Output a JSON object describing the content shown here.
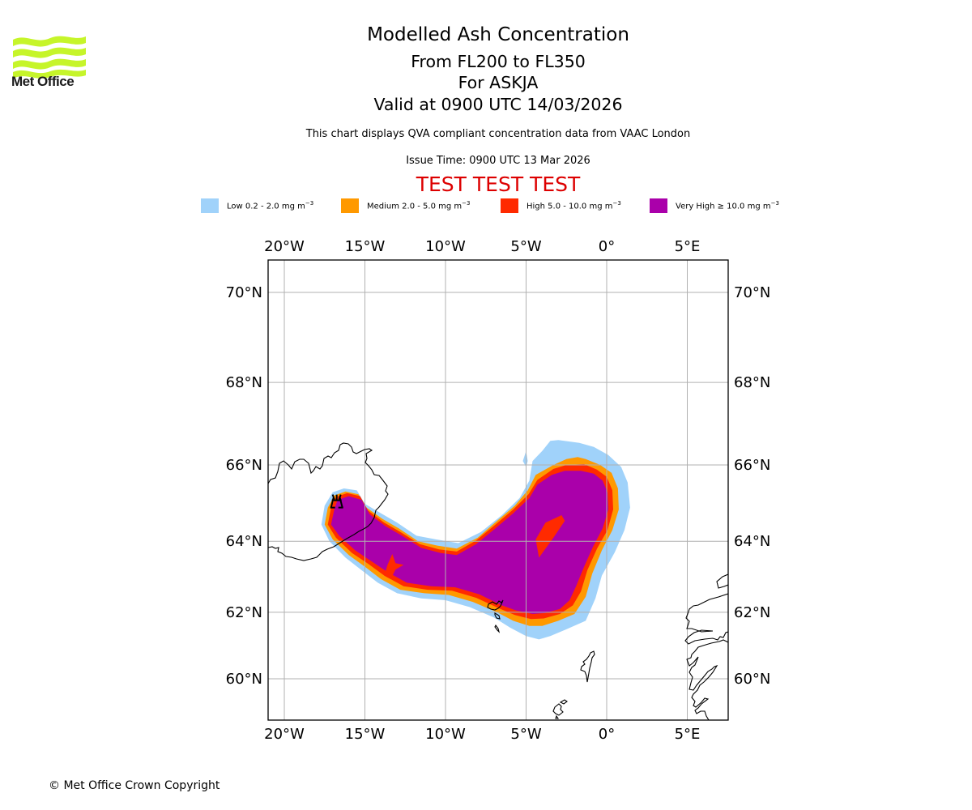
{
  "branding": {
    "logo_name": "Met Office",
    "logo_color": "#c6f52a"
  },
  "header": {
    "title": "Modelled Ash Concentration",
    "level_range": "From FL200 to FL350",
    "volcano": "For ASKJA",
    "valid_time": "Valid at 0900 UTC 14/03/2026",
    "compliance_note": "This chart displays QVA compliant concentration data from VAAC London",
    "issue_time": "Issue Time: 0900 UTC 13 Mar 2026",
    "test_banner": "TEST TEST TEST"
  },
  "legend": {
    "items": [
      {
        "label": "Low 0.2 - 2.0 mg m",
        "unit_exp": "−3",
        "color": "#a0d2fa"
      },
      {
        "label": "Medium 2.0 - 5.0 mg m",
        "unit_exp": "−3",
        "color": "#ff9900"
      },
      {
        "label": "High 5.0 - 10.0 mg m",
        "unit_exp": "−3",
        "color": "#ff2a00"
      },
      {
        "label": "Very High ≥ 10.0 mg m",
        "unit_exp": "−3",
        "color": "#aa00aa"
      }
    ]
  },
  "footer": {
    "copyright": "© Met Office Crown Copyright"
  },
  "chart_data": {
    "type": "map",
    "title": "Modelled Ash Concentration",
    "projection": "Mercator",
    "extent": {
      "lon": [
        -21,
        7.5
      ],
      "lat": [
        58.9,
        70.7
      ]
    },
    "grid": true,
    "lon_ticks": [
      {
        "value": -20,
        "label": "20°W"
      },
      {
        "value": -15,
        "label": "15°W"
      },
      {
        "value": -10,
        "label": "10°W"
      },
      {
        "value": -5,
        "label": "5°W"
      },
      {
        "value": 0,
        "label": "0°"
      },
      {
        "value": 5,
        "label": "5°E"
      }
    ],
    "lat_ticks": [
      {
        "value": 70,
        "label": "70°N"
      },
      {
        "value": 68,
        "label": "68°N"
      },
      {
        "value": 66,
        "label": "66°N"
      },
      {
        "value": 64,
        "label": "64°N"
      },
      {
        "value": 62,
        "label": "62°N"
      },
      {
        "value": 60,
        "label": "60°N"
      }
    ],
    "volcano_marker": {
      "name": "ASKJA",
      "lon": -16.75,
      "lat": 65.03
    },
    "ash_layers": [
      {
        "level": "Low",
        "min": 0.2,
        "max": 2.0,
        "color": "#a0d2fa",
        "polygon": [
          [
            -17.7,
            64.45
          ],
          [
            -17.2,
            64.0
          ],
          [
            -16.2,
            63.55
          ],
          [
            -15.2,
            63.2
          ],
          [
            -14.2,
            62.85
          ],
          [
            -13.0,
            62.55
          ],
          [
            -11.5,
            62.4
          ],
          [
            -10.0,
            62.35
          ],
          [
            -8.5,
            62.15
          ],
          [
            -7.0,
            61.85
          ],
          [
            -6.0,
            61.55
          ],
          [
            -5.0,
            61.3
          ],
          [
            -4.2,
            61.2
          ],
          [
            -3.5,
            61.3
          ],
          [
            -2.5,
            61.5
          ],
          [
            -1.3,
            61.75
          ],
          [
            -0.7,
            62.4
          ],
          [
            -0.3,
            63.05
          ],
          [
            0.5,
            63.7
          ],
          [
            1.1,
            64.3
          ],
          [
            1.45,
            64.9
          ],
          [
            1.3,
            65.55
          ],
          [
            0.9,
            65.95
          ],
          [
            0.1,
            66.25
          ],
          [
            -0.8,
            66.45
          ],
          [
            -1.7,
            66.55
          ],
          [
            -3.0,
            66.62
          ],
          [
            -3.5,
            66.6
          ],
          [
            -4.0,
            66.35
          ],
          [
            -4.6,
            66.1
          ],
          [
            -4.8,
            65.6
          ],
          [
            -5.4,
            65.15
          ],
          [
            -6.5,
            64.7
          ],
          [
            -7.8,
            64.25
          ],
          [
            -9.2,
            63.95
          ],
          [
            -10.6,
            64.05
          ],
          [
            -11.8,
            64.15
          ],
          [
            -13.0,
            64.5
          ],
          [
            -14.0,
            64.75
          ],
          [
            -15.0,
            65.0
          ],
          [
            -15.5,
            65.35
          ],
          [
            -16.3,
            65.4
          ],
          [
            -17.0,
            65.3
          ],
          [
            -17.5,
            64.95
          ]
        ]
      },
      {
        "level": "Medium",
        "min": 2.0,
        "max": 5.0,
        "color": "#ff9900",
        "polygon": [
          [
            -17.5,
            64.45
          ],
          [
            -17.0,
            64.05
          ],
          [
            -16.0,
            63.62
          ],
          [
            -15.0,
            63.3
          ],
          [
            -14.0,
            62.95
          ],
          [
            -12.8,
            62.65
          ],
          [
            -11.3,
            62.55
          ],
          [
            -9.8,
            62.5
          ],
          [
            -8.3,
            62.3
          ],
          [
            -6.8,
            62.0
          ],
          [
            -5.8,
            61.75
          ],
          [
            -4.8,
            61.6
          ],
          [
            -4.0,
            61.6
          ],
          [
            -3.0,
            61.75
          ],
          [
            -2.0,
            61.95
          ],
          [
            -1.3,
            62.45
          ],
          [
            -0.9,
            63.1
          ],
          [
            -0.3,
            63.75
          ],
          [
            0.35,
            64.3
          ],
          [
            0.75,
            64.85
          ],
          [
            0.7,
            65.4
          ],
          [
            0.3,
            65.8
          ],
          [
            -0.4,
            66.0
          ],
          [
            -1.3,
            66.15
          ],
          [
            -1.8,
            66.2
          ],
          [
            -2.5,
            66.15
          ],
          [
            -3.3,
            66.0
          ],
          [
            -4.4,
            65.75
          ],
          [
            -4.9,
            65.35
          ],
          [
            -5.7,
            64.95
          ],
          [
            -6.8,
            64.55
          ],
          [
            -8.0,
            64.1
          ],
          [
            -9.3,
            63.8
          ],
          [
            -10.5,
            63.88
          ],
          [
            -11.7,
            64.0
          ],
          [
            -12.9,
            64.35
          ],
          [
            -13.9,
            64.6
          ],
          [
            -14.9,
            64.9
          ],
          [
            -15.4,
            65.25
          ],
          [
            -16.2,
            65.32
          ],
          [
            -16.9,
            65.22
          ],
          [
            -17.3,
            64.9
          ]
        ]
      },
      {
        "level": "High",
        "min": 5.0,
        "max": 10.0,
        "color": "#ff2a00",
        "polygon": [
          [
            -17.3,
            64.45
          ],
          [
            -16.8,
            64.1
          ],
          [
            -15.8,
            63.68
          ],
          [
            -14.8,
            63.38
          ],
          [
            -13.8,
            63.05
          ],
          [
            -12.6,
            62.75
          ],
          [
            -11.1,
            62.65
          ],
          [
            -9.6,
            62.62
          ],
          [
            -8.1,
            62.42
          ],
          [
            -6.6,
            62.1
          ],
          [
            -5.7,
            61.92
          ],
          [
            -4.7,
            61.8
          ],
          [
            -3.9,
            61.82
          ],
          [
            -2.9,
            61.95
          ],
          [
            -2.1,
            62.2
          ],
          [
            -1.6,
            62.6
          ],
          [
            -1.2,
            63.2
          ],
          [
            -0.6,
            63.8
          ],
          [
            0.05,
            64.3
          ],
          [
            0.4,
            64.85
          ],
          [
            0.35,
            65.35
          ],
          [
            0.0,
            65.7
          ],
          [
            -0.6,
            65.88
          ],
          [
            -1.4,
            66.02
          ],
          [
            -2.5,
            66.0
          ],
          [
            -3.3,
            65.9
          ],
          [
            -4.3,
            65.62
          ],
          [
            -4.85,
            65.25
          ],
          [
            -5.8,
            64.85
          ],
          [
            -6.9,
            64.45
          ],
          [
            -8.1,
            64.02
          ],
          [
            -9.3,
            63.72
          ],
          [
            -10.4,
            63.78
          ],
          [
            -11.6,
            63.92
          ],
          [
            -12.8,
            64.25
          ],
          [
            -13.8,
            64.5
          ],
          [
            -14.8,
            64.82
          ],
          [
            -15.3,
            65.2
          ],
          [
            -16.1,
            65.28
          ],
          [
            -16.8,
            65.18
          ],
          [
            -17.1,
            64.9
          ]
        ]
      },
      {
        "level": "Very High",
        "min": 10.0,
        "max": null,
        "color": "#aa00aa",
        "polygon": [
          [
            -17.1,
            64.45
          ],
          [
            -16.6,
            64.15
          ],
          [
            -15.6,
            63.75
          ],
          [
            -14.6,
            63.45
          ],
          [
            -13.6,
            63.15
          ],
          [
            -12.4,
            62.85
          ],
          [
            -10.9,
            62.75
          ],
          [
            -9.4,
            62.72
          ],
          [
            -7.9,
            62.52
          ],
          [
            -6.5,
            62.2
          ],
          [
            -5.6,
            62.05
          ],
          [
            -4.6,
            61.95
          ],
          [
            -3.8,
            61.98
          ],
          [
            -2.9,
            62.1
          ],
          [
            -2.3,
            62.35
          ],
          [
            -1.9,
            62.75
          ],
          [
            -1.4,
            63.3
          ],
          [
            -0.85,
            63.85
          ],
          [
            -0.25,
            64.35
          ],
          [
            0.1,
            64.85
          ],
          [
            0.05,
            65.3
          ],
          [
            -0.25,
            65.6
          ],
          [
            -0.8,
            65.78
          ],
          [
            -1.6,
            65.85
          ],
          [
            -2.6,
            65.85
          ],
          [
            -3.4,
            65.75
          ],
          [
            -4.3,
            65.5
          ],
          [
            -4.8,
            65.15
          ],
          [
            -5.8,
            64.75
          ],
          [
            -6.9,
            64.35
          ],
          [
            -8.1,
            63.92
          ],
          [
            -9.3,
            63.62
          ],
          [
            -10.3,
            63.68
          ],
          [
            -11.5,
            63.82
          ],
          [
            -12.7,
            64.15
          ],
          [
            -13.7,
            64.4
          ],
          [
            -14.7,
            64.72
          ],
          [
            -15.2,
            65.1
          ],
          [
            -16.0,
            65.2
          ],
          [
            -16.7,
            65.1
          ],
          [
            -16.9,
            64.85
          ]
        ]
      },
      {
        "level": "High",
        "min": 5.0,
        "max": 10.0,
        "color": "#ff2a00",
        "polygon": [
          [
            -4.4,
            64.05
          ],
          [
            -3.8,
            64.5
          ],
          [
            -2.8,
            64.7
          ],
          [
            -2.6,
            64.55
          ],
          [
            -3.3,
            64.1
          ],
          [
            -4.2,
            63.55
          ]
        ]
      },
      {
        "level": "High",
        "min": 5.0,
        "max": 10.0,
        "color": "#ff2a00",
        "polygon": [
          [
            -13.6,
            63.35
          ],
          [
            -13.3,
            63.65
          ],
          [
            -13.1,
            63.4
          ],
          [
            -12.6,
            63.35
          ],
          [
            -13.1,
            63.22
          ],
          [
            -13.4,
            62.95
          ],
          [
            -13.8,
            63.05
          ]
        ]
      },
      {
        "level": "Low",
        "min": 0.2,
        "max": 2.0,
        "color": "#a0d2fa",
        "polygon": [
          [
            -5.2,
            66.1
          ],
          [
            -5.0,
            66.35
          ],
          [
            -4.9,
            66.1
          ],
          [
            -5.0,
            65.95
          ]
        ]
      }
    ]
  }
}
